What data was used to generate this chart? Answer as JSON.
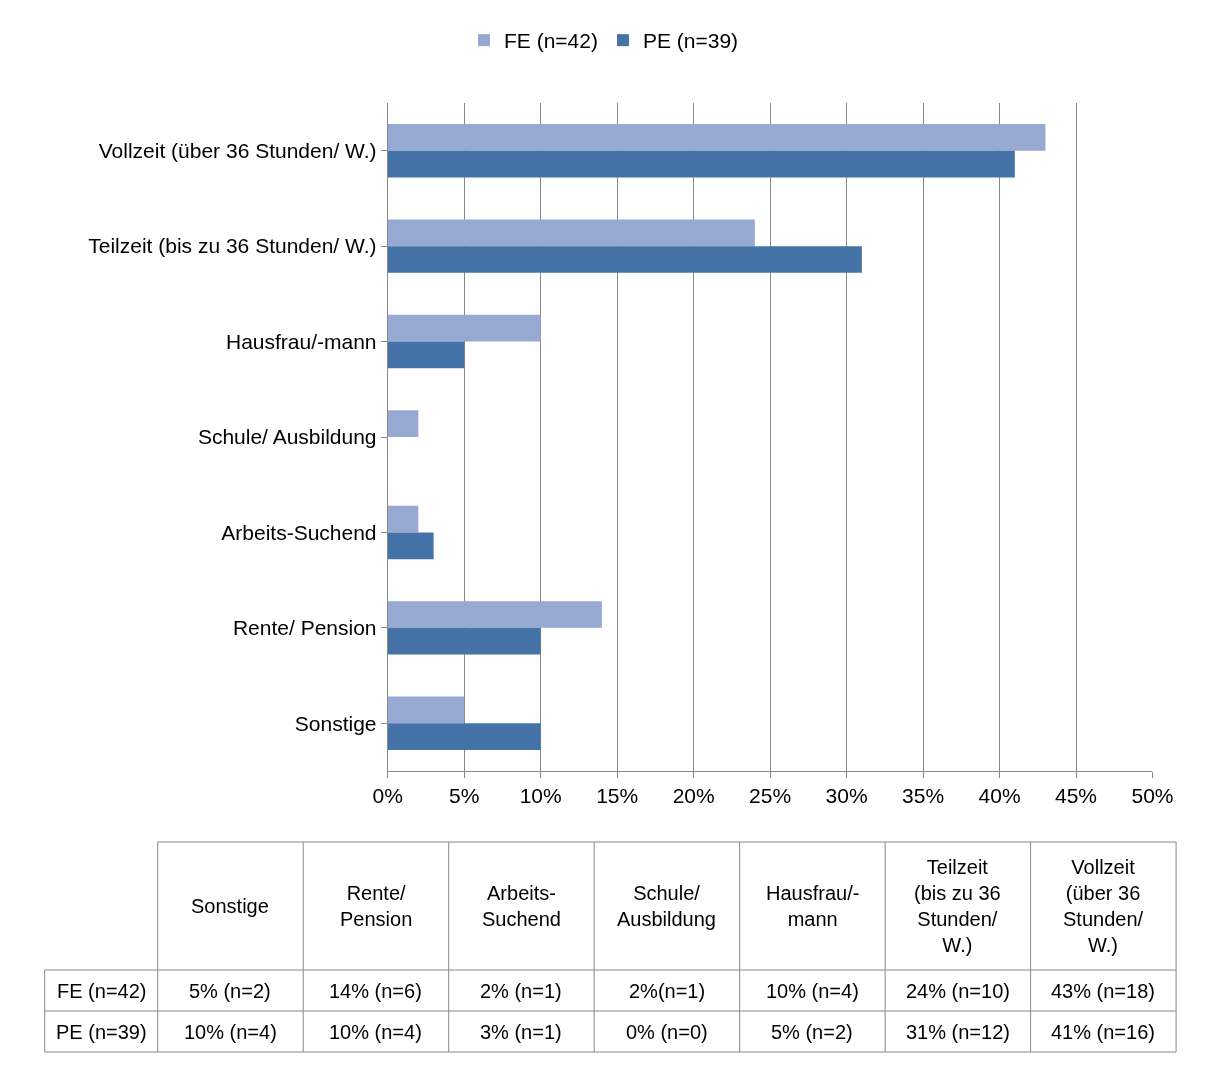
{
  "chart_data": [
    {
      "type": "bar",
      "orientation": "horizontal",
      "categories": [
        "Vollzeit (über 36 Stunden/ W.)",
        "Teilzeit (bis zu 36 Stunden/ W.)",
        "Hausfrau/-mann",
        "Schule/ Ausbildung",
        "Arbeits-Suchend",
        "Rente/ Pension",
        "Sonstige"
      ],
      "series": [
        {
          "name": "FE (n=42)",
          "color": "#95a9d3",
          "values": [
            43,
            24,
            10,
            2,
            2,
            14,
            5
          ]
        },
        {
          "name": "PE (n=39)",
          "color": "#4573a7",
          "values": [
            41,
            31,
            5,
            0,
            3,
            10,
            10
          ]
        }
      ],
      "xlim": [
        0,
        50
      ],
      "xticks": [
        {
          "value": 0,
          "label": "0%"
        },
        {
          "value": 5,
          "label": "5%"
        },
        {
          "value": 10,
          "label": "10%"
        },
        {
          "value": 15,
          "label": "15%"
        },
        {
          "value": 20,
          "label": "20%"
        },
        {
          "value": 25,
          "label": "25%"
        },
        {
          "value": 30,
          "label": "30%"
        },
        {
          "value": 35,
          "label": "35%"
        },
        {
          "value": 40,
          "label": "40%"
        },
        {
          "value": 45,
          "label": "45%"
        },
        {
          "value": 50,
          "label": "50%"
        }
      ],
      "grid": "x",
      "legend": "top"
    },
    {
      "type": "other",
      "categories": [
        "Sonstige",
        "Rente/ Pension",
        "Arbeits-Suchend",
        "Schule/ Ausbildung",
        "Hausfrau/-mann",
        "Teilzeit (bis zu 36 Stunden/ W.)",
        "Vollzeit (über 36 Stunden/ W.)"
      ],
      "series": [
        {
          "name": "FE (n=42)",
          "values": [
            5,
            14,
            2,
            2,
            10,
            24,
            43
          ],
          "value_labels": [
            "5% (n=2)",
            "14% (n=6)",
            "2% (n=1)",
            "2%(n=1)",
            "10% (n=4)",
            "24% (n=10)",
            "43% (n=18)"
          ]
        },
        {
          "name": "PE (n=39)",
          "values": [
            10,
            10,
            3,
            0,
            5,
            31,
            41
          ],
          "value_labels": [
            "10% (n=4)",
            "10% (n=4)",
            "3% (n=1)",
            "0% (n=0)",
            "5% (n=2)",
            "31% (n=12)",
            "41% (n=16)"
          ]
        }
      ]
    }
  ]
}
